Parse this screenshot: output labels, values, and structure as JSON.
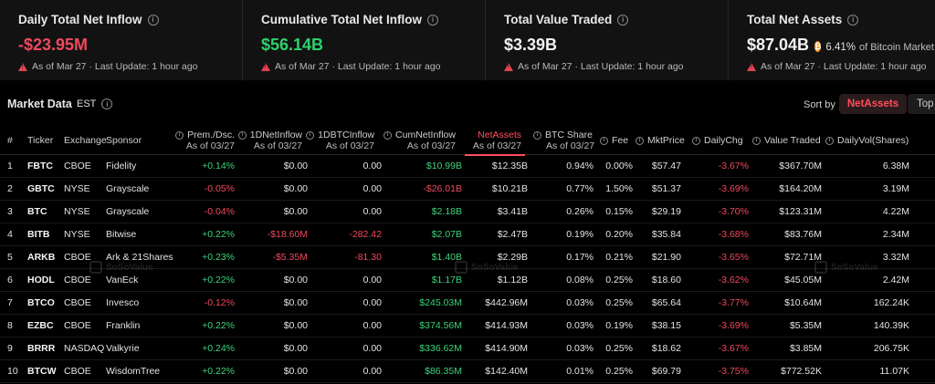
{
  "cards": [
    {
      "title": "Daily Total Net Inflow",
      "value": "-$23.95M",
      "meta": "As of Mar 27 · Last Update: 1 hour ago"
    },
    {
      "title": "Cumulative Total Net Inflow",
      "value": "$56.14B",
      "meta": "As of Mar 27 · Last Update: 1 hour ago"
    },
    {
      "title": "Total Value Traded",
      "value": "$3.39B",
      "meta": "As of Mar 27 · Last Update: 1 hour ago"
    },
    {
      "title": "Total Net Assets",
      "value": "$87.04B",
      "pct": "6.41%",
      "pct_note": "of Bitcoin Market Cap",
      "meta": "As of Mar 27 · Last Update: 1 hour ago"
    }
  ],
  "market": {
    "title": "Market Data",
    "tz": "EST",
    "sort_label": "Sort by",
    "sort_active": "NetAssets",
    "sort_next": "Top"
  },
  "columns": {
    "num": "#",
    "ticker": "Ticker",
    "exchange": "Exchange",
    "sponsor": "Sponsor",
    "prem": "Prem./Dsc.",
    "dnet": "1DNetInflow",
    "dbtc": "1DBTCInflow",
    "cum": "CumNetInflow",
    "assets": "NetAssets",
    "share": "BTC Share",
    "fee": "Fee",
    "price": "MktPrice",
    "chg": "DailyChg",
    "traded": "Value Traded",
    "vol": "DailyVol(Shares)",
    "asof": "As of 03/27"
  },
  "rows": [
    {
      "n": "1",
      "ticker": "FBTC",
      "exchange": "CBOE",
      "sponsor": "Fidelity",
      "prem": "+0.14%",
      "dnet": "$0.00",
      "dbtc": "0.00",
      "cum": "$10.99B",
      "assets": "$12.35B",
      "share": "0.94%",
      "fee": "0.00%",
      "price": "$57.47",
      "chg": "-3.67%",
      "traded": "$367.70M",
      "vol": "6.38M"
    },
    {
      "n": "2",
      "ticker": "GBTC",
      "exchange": "NYSE",
      "sponsor": "Grayscale",
      "prem": "-0.05%",
      "dnet": "$0.00",
      "dbtc": "0.00",
      "cum": "-$26.01B",
      "assets": "$10.21B",
      "share": "0.77%",
      "fee": "1.50%",
      "price": "$51.37",
      "chg": "-3.69%",
      "traded": "$164.20M",
      "vol": "3.19M"
    },
    {
      "n": "3",
      "ticker": "BTC",
      "exchange": "NYSE",
      "sponsor": "Grayscale",
      "prem": "-0.04%",
      "dnet": "$0.00",
      "dbtc": "0.00",
      "cum": "$2.18B",
      "assets": "$3.41B",
      "share": "0.26%",
      "fee": "0.15%",
      "price": "$29.19",
      "chg": "-3.70%",
      "traded": "$123.31M",
      "vol": "4.22M"
    },
    {
      "n": "4",
      "ticker": "BITB",
      "exchange": "NYSE",
      "sponsor": "Bitwise",
      "prem": "+0.22%",
      "dnet": "-$18.60M",
      "dbtc": "-282.42",
      "cum": "$2.07B",
      "assets": "$2.47B",
      "share": "0.19%",
      "fee": "0.20%",
      "price": "$35.84",
      "chg": "-3.68%",
      "traded": "$83.76M",
      "vol": "2.34M"
    },
    {
      "n": "5",
      "ticker": "ARKB",
      "exchange": "CBOE",
      "sponsor": "Ark & 21Shares",
      "prem": "+0.23%",
      "dnet": "-$5.35M",
      "dbtc": "-81.30",
      "cum": "$1.40B",
      "assets": "$2.29B",
      "share": "0.17%",
      "fee": "0.21%",
      "price": "$21.90",
      "chg": "-3.65%",
      "traded": "$72.71M",
      "vol": "3.32M"
    },
    {
      "n": "6",
      "ticker": "HODL",
      "exchange": "CBOE",
      "sponsor": "VanEck",
      "prem": "+0.22%",
      "dnet": "$0.00",
      "dbtc": "0.00",
      "cum": "$1.17B",
      "assets": "$1.12B",
      "share": "0.08%",
      "fee": "0.25%",
      "price": "$18.60",
      "chg": "-3.62%",
      "traded": "$45.05M",
      "vol": "2.42M"
    },
    {
      "n": "7",
      "ticker": "BTCO",
      "exchange": "CBOE",
      "sponsor": "Invesco",
      "prem": "-0.12%",
      "dnet": "$0.00",
      "dbtc": "0.00",
      "cum": "$245.03M",
      "assets": "$442.96M",
      "share": "0.03%",
      "fee": "0.25%",
      "price": "$65.64",
      "chg": "-3.77%",
      "traded": "$10.64M",
      "vol": "162.24K"
    },
    {
      "n": "8",
      "ticker": "EZBC",
      "exchange": "CBOE",
      "sponsor": "Franklin",
      "prem": "+0.22%",
      "dnet": "$0.00",
      "dbtc": "0.00",
      "cum": "$374.56M",
      "assets": "$414.93M",
      "share": "0.03%",
      "fee": "0.19%",
      "price": "$38.15",
      "chg": "-3.69%",
      "traded": "$5.35M",
      "vol": "140.39K"
    },
    {
      "n": "9",
      "ticker": "BRRR",
      "exchange": "NASDAQ",
      "sponsor": "Valkyrie",
      "prem": "+0.24%",
      "dnet": "$0.00",
      "dbtc": "0.00",
      "cum": "$336.62M",
      "assets": "$414.90M",
      "share": "0.03%",
      "fee": "0.25%",
      "price": "$18.62",
      "chg": "-3.67%",
      "traded": "$3.85M",
      "vol": "206.75K"
    },
    {
      "n": "10",
      "ticker": "BTCW",
      "exchange": "CBOE",
      "sponsor": "WisdomTree",
      "prem": "+0.22%",
      "dnet": "$0.00",
      "dbtc": "0.00",
      "cum": "$86.35M",
      "assets": "$142.40M",
      "share": "0.01%",
      "fee": "0.25%",
      "price": "$69.79",
      "chg": "-3.75%",
      "traded": "$772.52K",
      "vol": "11.07K"
    }
  ],
  "watermark": "SoSoValue",
  "colors": {
    "positive": "#3dd27a",
    "negative": "#f0495d",
    "accent": "#ff4f5e",
    "bitcoin": "#f7931a"
  }
}
